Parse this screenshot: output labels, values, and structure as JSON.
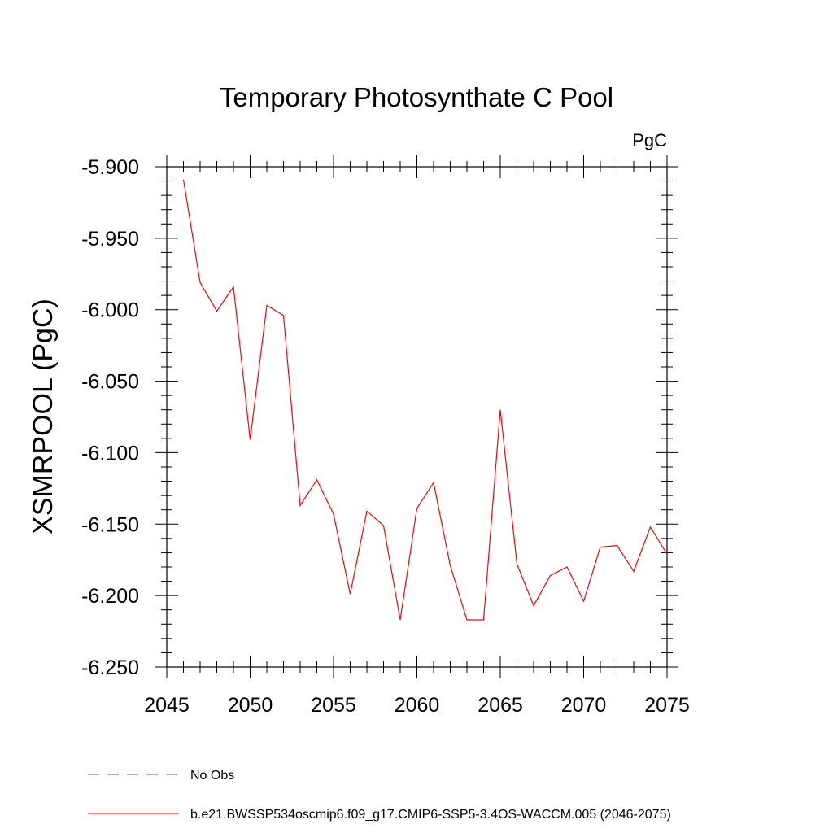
{
  "chart_data": {
    "type": "line",
    "title": "Temporary Photosynthate C Pool",
    "units_label": "PgC",
    "xlabel": "",
    "ylabel": "XSMRPOOL  (PgC)",
    "xlim": [
      2045,
      2075
    ],
    "ylim": [
      -6.25,
      -5.9
    ],
    "x_ticks": [
      "2045",
      "2050",
      "2055",
      "2060",
      "2065",
      "2070",
      "2075"
    ],
    "y_ticks": [
      "-5.900",
      "-5.950",
      "-6.000",
      "-6.050",
      "-6.100",
      "-6.150",
      "-6.200",
      "-6.250"
    ],
    "x": [
      2046,
      2047,
      2048,
      2049,
      2050,
      2051,
      2052,
      2053,
      2054,
      2055,
      2056,
      2057,
      2058,
      2059,
      2060,
      2061,
      2062,
      2063,
      2064,
      2065,
      2066,
      2067,
      2068,
      2069,
      2070,
      2071,
      2072,
      2073,
      2074,
      2075
    ],
    "series": [
      {
        "name": "b.e21.BWSSP534oscmip6.f09_g17.CMIP6-SSP5-3.4OS-WACCM.005 (2046-2075)",
        "color": "#ff0000",
        "style": "solid",
        "values": [
          -5.909,
          -5.981,
          -6.001,
          -5.984,
          -6.091,
          -5.997,
          -6.004,
          -6.137,
          -6.119,
          -6.143,
          -6.199,
          -6.141,
          -6.151,
          -6.217,
          -6.139,
          -6.121,
          -6.179,
          -6.217,
          -6.217,
          -6.07,
          -6.178,
          -6.207,
          -6.186,
          -6.18,
          -6.204,
          -6.166,
          -6.165,
          -6.183,
          -6.152,
          -6.171
        ]
      }
    ],
    "legend": [
      {
        "label": "No Obs",
        "color": "#5a50b4",
        "style": "dashed"
      },
      {
        "label": "b.e21.BWSSP534oscmip6.f09_g17.CMIP6-SSP5-3.4OS-WACCM.005 (2046-2075)",
        "color": "#ff0000",
        "style": "solid"
      }
    ]
  }
}
